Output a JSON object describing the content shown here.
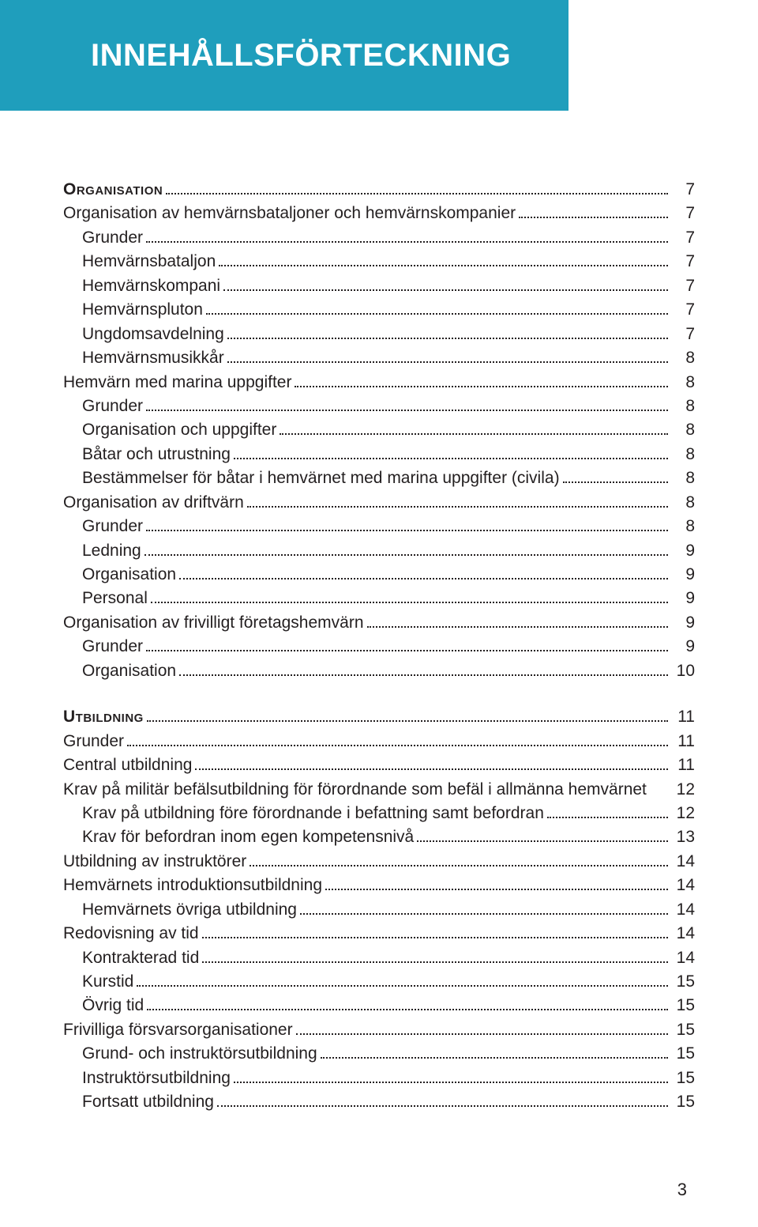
{
  "header": {
    "title": "INNEHÅLLSFÖRTECKNING"
  },
  "page_number": "3",
  "colors": {
    "band": "#1f9ebc",
    "text": "#231f20",
    "background": "#ffffff"
  },
  "toc": [
    {
      "type": "section",
      "label": "Organisation",
      "page": "7",
      "indent": 0
    },
    {
      "label": "Organisation av hemvärnsbataljoner och hemvärnskompanier",
      "page": "7",
      "indent": 0
    },
    {
      "label": "Grunder",
      "page": "7",
      "indent": 1
    },
    {
      "label": "Hemvärnsbataljon",
      "page": "7",
      "indent": 1
    },
    {
      "label": "Hemvärnskompani",
      "page": "7",
      "indent": 1
    },
    {
      "label": "Hemvärnspluton",
      "page": "7",
      "indent": 1
    },
    {
      "label": "Ungdomsavdelning",
      "page": "7",
      "indent": 1
    },
    {
      "label": "Hemvärnsmusikkår",
      "page": "8",
      "indent": 1
    },
    {
      "label": "Hemvärn med marina uppgifter",
      "page": "8",
      "indent": 0
    },
    {
      "label": "Grunder",
      "page": "8",
      "indent": 1
    },
    {
      "label": "Organisation och uppgifter",
      "page": "8",
      "indent": 1
    },
    {
      "label": "Båtar och utrustning",
      "page": "8",
      "indent": 1
    },
    {
      "label": "Bestämmelser för båtar i hemvärnet med marina uppgifter (civila)",
      "page": "8",
      "indent": 1
    },
    {
      "label": "Organisation av driftvärn",
      "page": "8",
      "indent": 0
    },
    {
      "label": "Grunder",
      "page": "8",
      "indent": 1
    },
    {
      "label": "Ledning",
      "page": "9",
      "indent": 1
    },
    {
      "label": "Organisation",
      "page": "9",
      "indent": 1
    },
    {
      "label": "Personal",
      "page": "9",
      "indent": 1
    },
    {
      "label": "Organisation av frivilligt företagshemvärn",
      "page": "9",
      "indent": 0
    },
    {
      "label": "Grunder",
      "page": "9",
      "indent": 1
    },
    {
      "label": "Organisation",
      "page": "10",
      "indent": 1
    },
    {
      "type": "gap"
    },
    {
      "type": "section",
      "label": "Utbildning",
      "page": "11",
      "indent": 0
    },
    {
      "label": "Grunder",
      "page": "11",
      "indent": 0
    },
    {
      "label": "Central utbildning",
      "page": "11",
      "indent": 0
    },
    {
      "label": "Krav på militär befälsutbildning för förordnande som befäl i allmänna hemvärnet",
      "page": "12",
      "indent": 0,
      "no_leader": true
    },
    {
      "label": "Krav på utbildning före förordnande i befattning samt befordran",
      "page": "12",
      "indent": 1
    },
    {
      "label": "Krav för befordran inom egen kompetensnivå",
      "page": "13",
      "indent": 1
    },
    {
      "label": "Utbildning av instruktörer",
      "page": "14",
      "indent": 0
    },
    {
      "label": "Hemvärnets introduktionsutbildning",
      "page": "14",
      "indent": 0
    },
    {
      "label": "Hemvärnets övriga utbildning",
      "page": "14",
      "indent": 1
    },
    {
      "label": "Redovisning av tid",
      "page": "14",
      "indent": 0
    },
    {
      "label": "Kontrakterad tid",
      "page": "14",
      "indent": 1
    },
    {
      "label": "Kurstid",
      "page": "15",
      "indent": 1
    },
    {
      "label": "Övrig tid",
      "page": "15",
      "indent": 1
    },
    {
      "label": "Frivilliga försvarsorganisationer",
      "page": "15",
      "indent": 0
    },
    {
      "label": "Grund- och instruktörsutbildning",
      "page": "15",
      "indent": 1
    },
    {
      "label": "Instruktörsutbildning",
      "page": "15",
      "indent": 1
    },
    {
      "label": "Fortsatt utbildning",
      "page": "15",
      "indent": 1
    }
  ]
}
